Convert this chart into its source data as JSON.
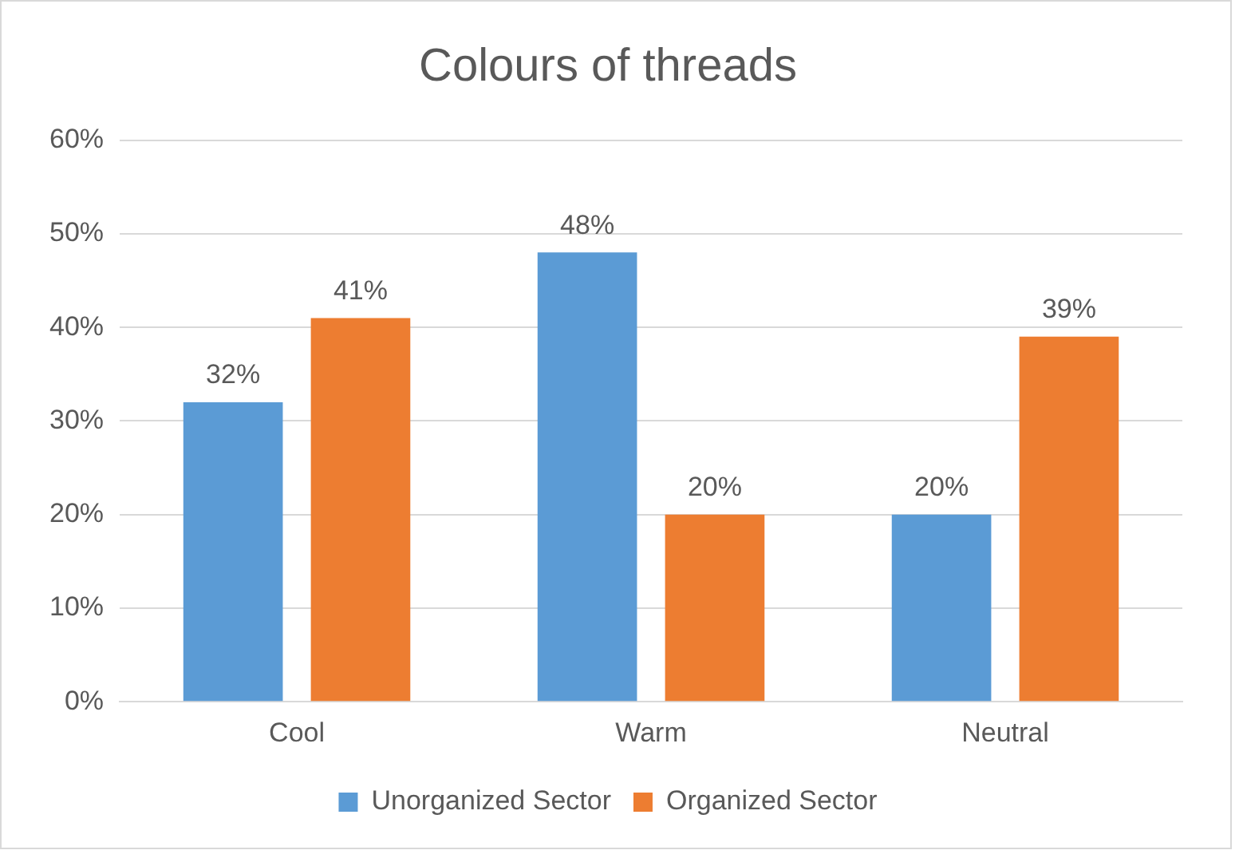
{
  "chart_data": {
    "type": "bar",
    "title": "Colours of threads",
    "categories": [
      "Cool",
      "Warm",
      "Neutral"
    ],
    "series": [
      {
        "name": "Unorganized Sector",
        "color": "#5b9bd5",
        "values": [
          32,
          48,
          20
        ],
        "value_labels": [
          "32%",
          "48%",
          "20%"
        ]
      },
      {
        "name": "Organized Sector",
        "color": "#ed7d31",
        "values": [
          41,
          20,
          39
        ],
        "value_labels": [
          "41%",
          "20%",
          "39%"
        ]
      }
    ],
    "ylim": [
      0,
      60
    ],
    "yticks": [
      {
        "value": 0,
        "label": "0%"
      },
      {
        "value": 10,
        "label": "10%"
      },
      {
        "value": 20,
        "label": "20%"
      },
      {
        "value": 30,
        "label": "30%"
      },
      {
        "value": 40,
        "label": "40%"
      },
      {
        "value": 50,
        "label": "50%"
      },
      {
        "value": 60,
        "label": "60%"
      }
    ],
    "grid": "y",
    "legend": "bottom"
  }
}
